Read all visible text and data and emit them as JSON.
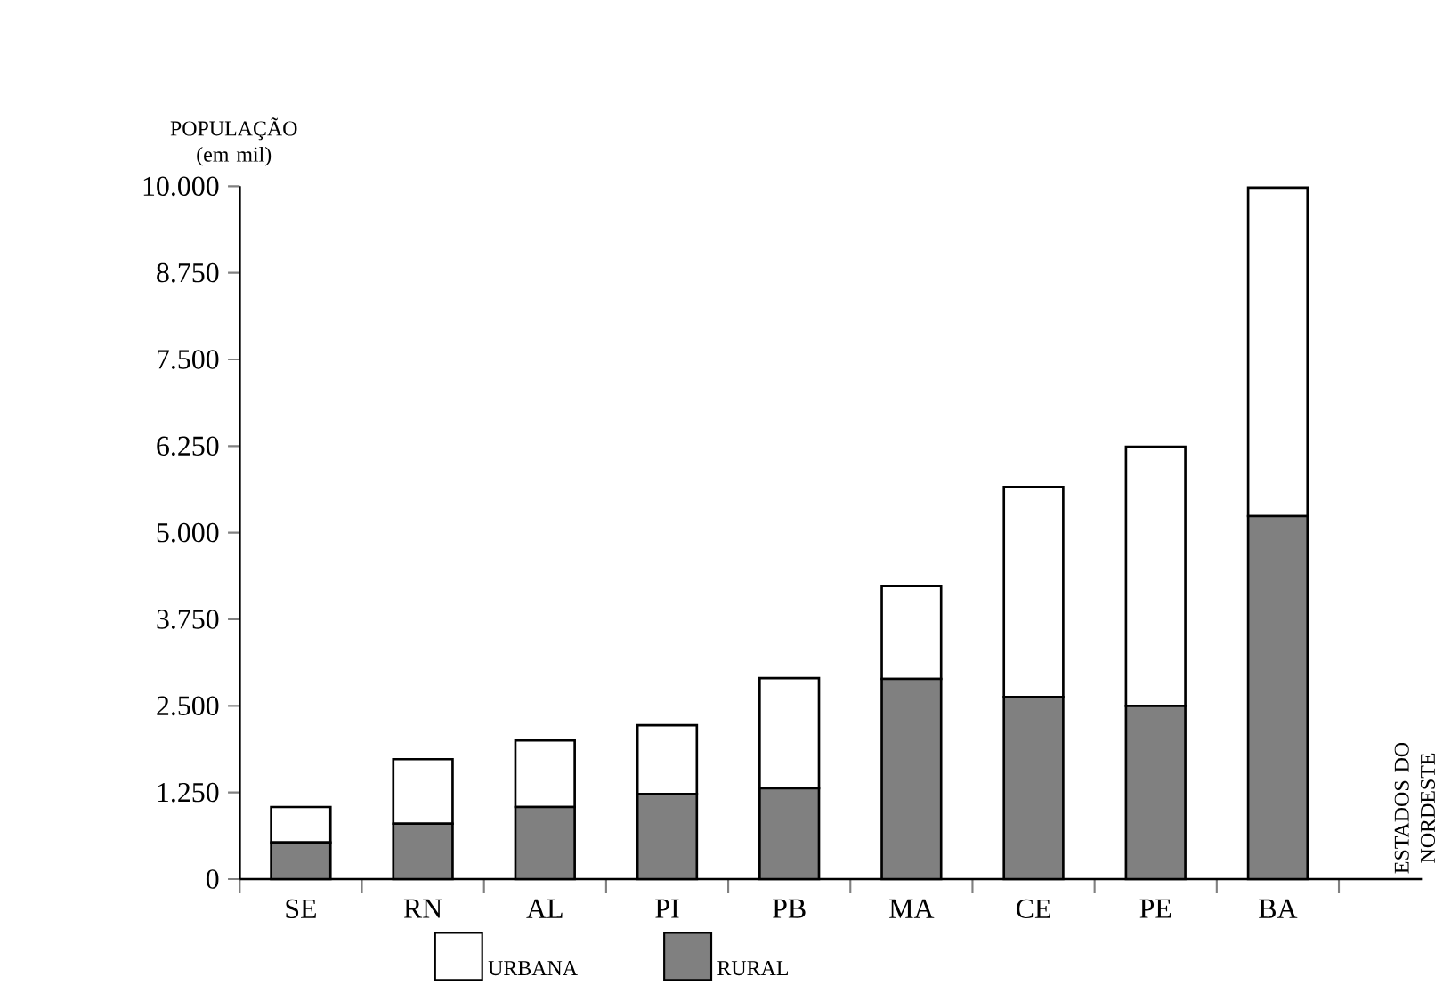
{
  "chart_data": {
    "type": "bar",
    "stacked": true,
    "ylabel": "POPULAÇÃO (em mil)",
    "annotations": [
      "ESTADOS DO NORDESTE"
    ],
    "categories": [
      "SE",
      "RN",
      "AL",
      "PI",
      "PB",
      "MA",
      "CE",
      "PE",
      "BA"
    ],
    "series": [
      {
        "name": "RURAL",
        "color": "#808080",
        "values": [
          530,
          800,
          1040,
          1230,
          1310,
          2890,
          2630,
          2500,
          5240
        ]
      },
      {
        "name": "URBANA",
        "color": "#ffffff",
        "values": [
          510,
          930,
          960,
          990,
          1590,
          1340,
          3030,
          3740,
          4740
        ]
      }
    ],
    "ylim": [
      0,
      10000
    ],
    "yticks": [
      0,
      {
        "value": 1250,
        "label": "1.250"
      },
      {
        "value": 2500,
        "label": "2.500"
      },
      {
        "value": 3750,
        "label": "3.750"
      },
      {
        "value": 5000,
        "label": "5.000"
      },
      {
        "value": 6250,
        "label": "6.250"
      },
      {
        "value": 7500,
        "label": "7.500"
      },
      {
        "value": 8750,
        "label": "8.750"
      },
      {
        "value": 10000,
        "label": "10.000"
      }
    ],
    "grid": false,
    "legend": "bottom"
  }
}
